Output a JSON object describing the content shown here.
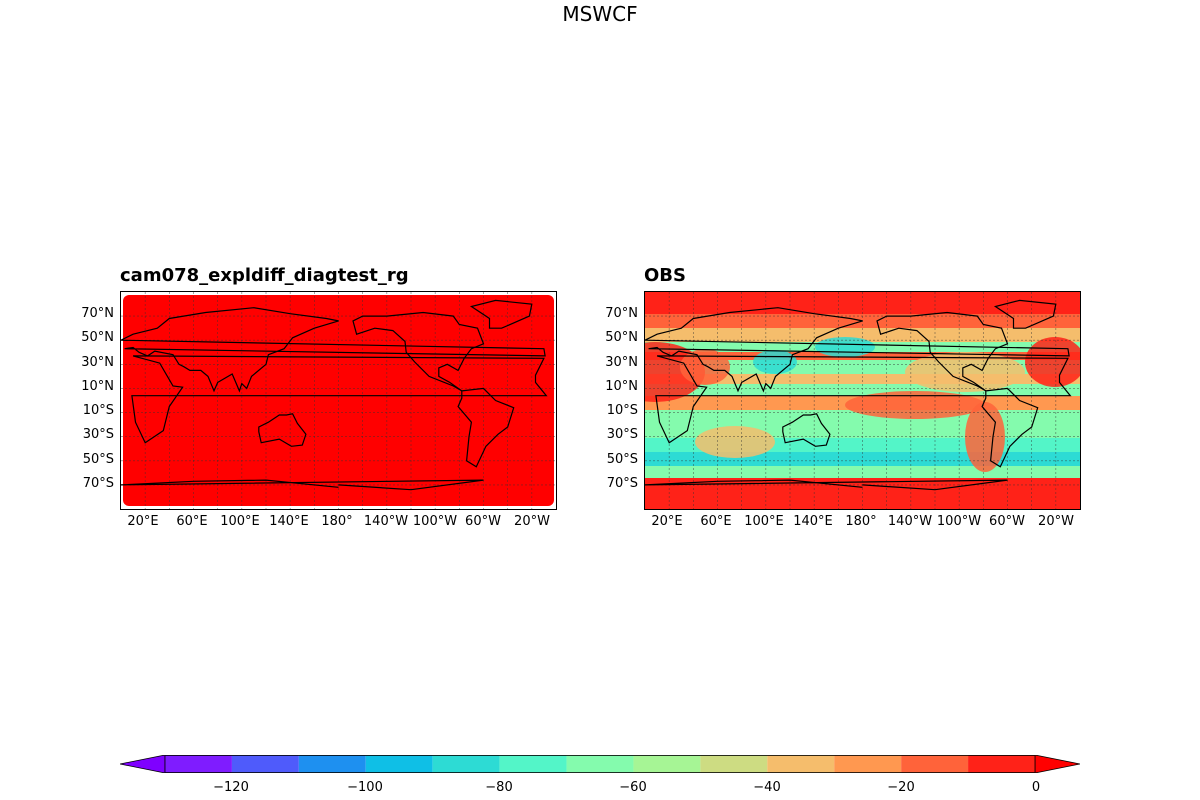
{
  "figure": {
    "suptitle": "MSWCF"
  },
  "panels": [
    {
      "title": "cam078_expldiff_diagtest_rg",
      "lat_labels": [
        "70°N",
        "50°N",
        "30°N",
        "10°N",
        "10°S",
        "30°S",
        "50°S",
        "70°S"
      ],
      "lon_labels": [
        "20°E",
        "60°E",
        "100°E",
        "140°E",
        "180°",
        "140°W",
        "100°W",
        "60°W",
        "20°W"
      ]
    },
    {
      "title": "OBS",
      "lat_labels": [
        "70°N",
        "50°N",
        "30°N",
        "10°N",
        "10°S",
        "30°S",
        "50°S",
        "70°S"
      ],
      "lon_labels": [
        "20°E",
        "60°E",
        "100°E",
        "140°E",
        "180°",
        "140°W",
        "100°W",
        "60°W",
        "20°W"
      ]
    }
  ],
  "colorbar": {
    "levels": [
      -130,
      -120,
      -110,
      -100,
      -90,
      -80,
      -70,
      -60,
      -50,
      -40,
      -30,
      -20,
      -10,
      0
    ],
    "colors": [
      "#7f1cff",
      "#4f5bfb",
      "#1e90f0",
      "#0fbfe6",
      "#2ddbd4",
      "#53f5c8",
      "#84fbad",
      "#a6f595",
      "#cddc82",
      "#f5bd6c",
      "#ff9850",
      "#ff633a",
      "#ff2218"
    ],
    "extend_min_color": "#7f00ff",
    "extend_max_color": "#ff0000",
    "tick_labels": [
      "−120",
      "−100",
      "−80",
      "−60",
      "−40",
      "−20",
      "0"
    ]
  },
  "chart_data": {
    "type": "heatmap",
    "title": "MSWCF",
    "projection": "PlateCarree",
    "central_longitude": 180,
    "lon_range": [
      0,
      360
    ],
    "lat_range": [
      -90,
      90
    ],
    "gridlines": true,
    "panel_left_field": {
      "title": "cam078_expldiff_diagtest_rg",
      "value_range": [
        -10,
        0
      ],
      "dominant_level": "-10 to 0"
    },
    "panel_right_field": {
      "title": "OBS",
      "value_range": [
        -80,
        0
      ]
    },
    "colorbar_ticks": [
      -120,
      -100,
      -80,
      -60,
      -40,
      -20,
      0
    ]
  }
}
